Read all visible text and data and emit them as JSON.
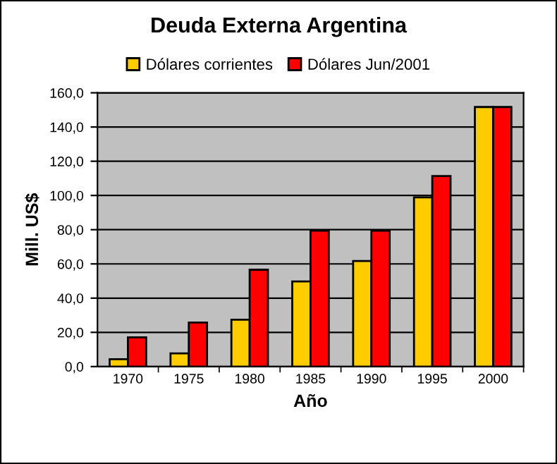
{
  "chart_data": {
    "type": "bar",
    "title": "Deuda Externa Argentina",
    "xlabel": "Año",
    "ylabel": "Mill. US$",
    "categories": [
      "1970",
      "1975",
      "1980",
      "1985",
      "1990",
      "1995",
      "2000"
    ],
    "series": [
      {
        "name": "Dólares corrientes",
        "color": "#ffcc00",
        "values": [
          4.3,
          7.7,
          27.4,
          49.7,
          61.7,
          98.9,
          151.7
        ]
      },
      {
        "name": "Dólares Jun/2001",
        "color": "#ff0000",
        "values": [
          17.1,
          25.7,
          56.6,
          79.4,
          79.4,
          111.4,
          151.7
        ]
      }
    ],
    "ylim": [
      0,
      160
    ],
    "yticks": [
      {
        "value": 0,
        "label": "0,0"
      },
      {
        "value": 20,
        "label": "20,0"
      },
      {
        "value": 40,
        "label": "40,0"
      },
      {
        "value": 60,
        "label": "60,0"
      },
      {
        "value": 80,
        "label": "80,0"
      },
      {
        "value": 100,
        "label": "100,0"
      },
      {
        "value": 120,
        "label": "120,0"
      },
      {
        "value": 140,
        "label": "140,0"
      },
      {
        "value": 160,
        "label": "160,0"
      }
    ],
    "grid": "y",
    "legend": "top"
  }
}
